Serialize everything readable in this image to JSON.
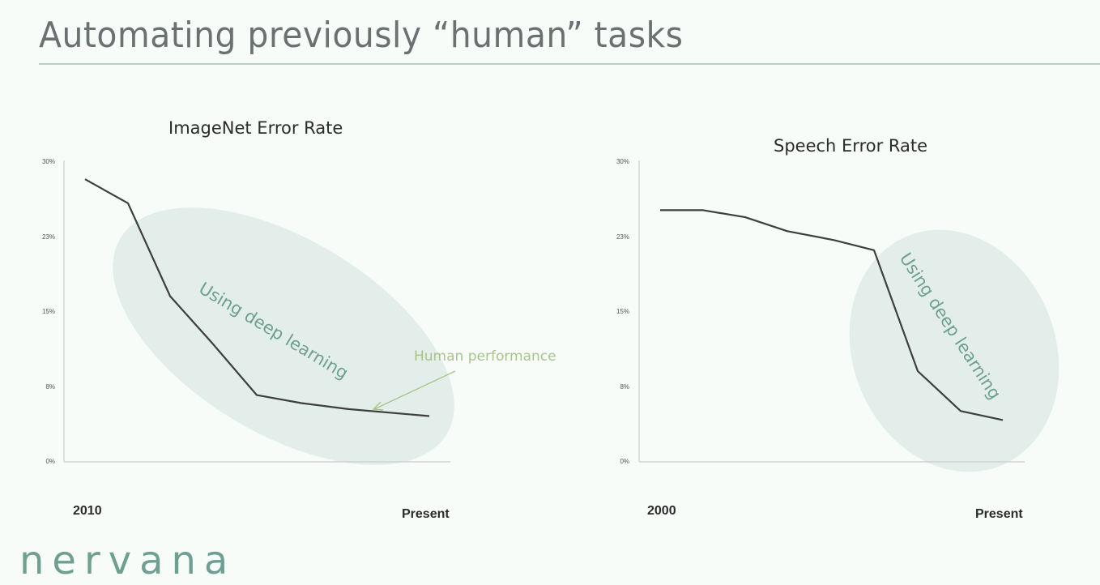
{
  "slide": {
    "title": "Automating previously “human” tasks",
    "logo_text": "nervana",
    "colors": {
      "background": "#f7fcf9",
      "title_text": "#6b7170",
      "title_rule": "#b9d2c9",
      "line": "#3d3f3e",
      "highlight_ellipse": "#e3eeeb",
      "highlight_text": "#6f9f91",
      "annotation": "#a9c48a",
      "axis": "#cfd3d2",
      "logo": "#6f9f91"
    }
  },
  "left_chart": {
    "title": "ImageNet Error Rate",
    "x_start_label": "2010",
    "x_end_label": "Present",
    "y_ticks": [
      "30%",
      "23%",
      "15%",
      "8%",
      "0%"
    ],
    "highlight_label": "Using deep learning",
    "annotation_label": "Human performance"
  },
  "right_chart": {
    "title": "Speech Error Rate",
    "x_start_label": "2000",
    "x_end_label": "Present",
    "y_ticks": [
      "30%",
      "23%",
      "15%",
      "8%",
      "0%"
    ],
    "highlight_label": "Using deep learning"
  },
  "chart_data": [
    {
      "type": "line",
      "title": "ImageNet Error Rate",
      "xlabel": "",
      "ylabel": "",
      "x": [
        "2010",
        "",
        "",
        "",
        "",
        "",
        "",
        "Present"
      ],
      "series": [
        {
          "name": "ImageNet error rate (%)",
          "values": [
            28.2,
            25.8,
            16.5,
            11.8,
            6.6,
            5.8,
            5.2,
            4.5
          ]
        }
      ],
      "y_tick_labels": [
        "0%",
        "8%",
        "15%",
        "23%",
        "30%"
      ],
      "ylim": [
        0,
        30
      ],
      "grid": false,
      "legend": "none",
      "annotations": [
        {
          "text": "Using deep learning",
          "type": "shaded-ellipse",
          "covers_points": [
            2,
            3,
            4,
            5,
            6,
            7
          ]
        },
        {
          "text": "Human performance",
          "type": "arrow",
          "points_to_value": 5.2
        }
      ]
    },
    {
      "type": "line",
      "title": "Speech Error Rate",
      "xlabel": "",
      "ylabel": "",
      "x": [
        "2000",
        "",
        "",
        "",
        "",
        "",
        "",
        "",
        "Present"
      ],
      "series": [
        {
          "name": "Speech error rate (%)",
          "values": [
            25.1,
            25.1,
            24.4,
            23.0,
            22.1,
            21.1,
            9.0,
            5.0,
            4.1
          ]
        }
      ],
      "y_tick_labels": [
        "0%",
        "8%",
        "15%",
        "23%",
        "30%"
      ],
      "ylim": [
        0,
        30
      ],
      "grid": false,
      "legend": "none",
      "annotations": [
        {
          "text": "Using deep learning",
          "type": "shaded-ellipse",
          "covers_points": [
            5,
            6,
            7,
            8
          ]
        }
      ]
    }
  ]
}
